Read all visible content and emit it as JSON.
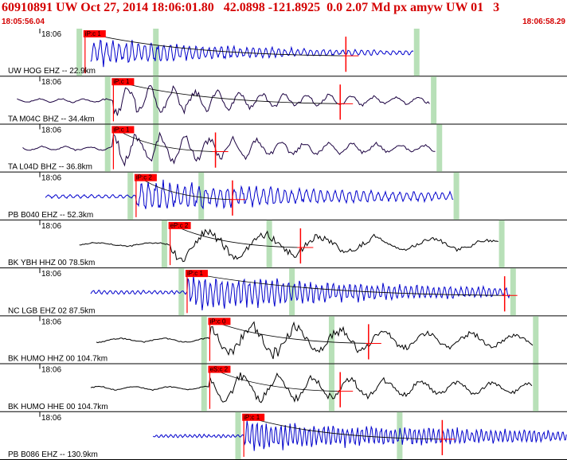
{
  "header": {
    "title": "60910891 UW Oct 27, 2014 18:06:01.80   42.0898 -121.8925  0.0 2.07 Md px amyw UW 01   3",
    "start_time": "18:05:56.04",
    "end_time": "18:06:58.29"
  },
  "colors": {
    "accent": "#d40000",
    "blue_trace": "#0000cc",
    "black_trace": "#000000",
    "purple_trace": "#1a0040",
    "pick_box": "#ff0000",
    "window_band": "#b8e0b8"
  },
  "panels": [
    {
      "time_label": "18:06",
      "station": "UW HOG EHZ -- 22.9km",
      "pick": "iP:c 1",
      "color": "blue",
      "p": 0.15,
      "s": 0.27,
      "end": 0.73,
      "signal": 0.16,
      "amp": 0.55,
      "period": 8,
      "dur": 0.3,
      "coda": 0.61,
      "marker": 0.61
    },
    {
      "time_label": "18:06",
      "station": "TA M04C BHZ -- 34.4km",
      "pick": "iP:c 1",
      "color": "purple",
      "p": 0.2,
      "s": 0.27,
      "end": 0.76,
      "signal": 0.03,
      "amp": 0.65,
      "period": 28,
      "dur": 0.35,
      "coda": 0.6,
      "marker": 0.6
    },
    {
      "time_label": "18:06",
      "station": "TA L04D BHZ -- 36.8km",
      "pick": "iP:c 1",
      "color": "purple",
      "p": 0.2,
      "s": 0.27,
      "end": 0.77,
      "signal": 0.04,
      "amp": 0.7,
      "period": 30,
      "dur": 0.35,
      "coda": 0.38,
      "marker": 0.38
    },
    {
      "time_label": "18:06",
      "station": "PB B040 EHZ -- 52.3km",
      "pick": "iP:c 2",
      "color": "blue",
      "p": 0.24,
      "s": 0.35,
      "end": 0.8,
      "signal": 0.08,
      "amp": 0.6,
      "period": 9,
      "dur": 0.4,
      "coda": 0.41,
      "marker": 0.41
    },
    {
      "time_label": "18:06",
      "station": "BK YBH HHZ 00 78.5km",
      "pick": "eP:c 2",
      "color": "black",
      "p": 0.3,
      "s": 0.47,
      "end": 0.88,
      "signal": 0.14,
      "amp": 0.7,
      "period": 70,
      "dur": 0.45,
      "coda": 0.53,
      "marker": 0.53
    },
    {
      "time_label": "18:06",
      "station": "NC LGB EHZ 02 87.5km",
      "pick": "iP:c 1",
      "color": "blue",
      "p": 0.33,
      "s": 0.51,
      "end": 0.9,
      "signal": 0.16,
      "amp": 0.65,
      "period": 7,
      "dur": 0.45,
      "coda": 0.89,
      "marker": 0.89
    },
    {
      "time_label": "18:06",
      "station": "BK HUMO HHZ 00 104.7km",
      "pick": "iP:c 0",
      "color": "black",
      "p": 0.37,
      "s": 0.58,
      "end": 0.94,
      "signal": 0.17,
      "amp": 0.75,
      "period": 55,
      "dur": 0.5,
      "coda": 0.65,
      "marker": 0.65
    },
    {
      "time_label": "18:06",
      "station": "BK HUMO HHE 00 104.7km",
      "pick": "eS:c 2",
      "color": "black",
      "p": 0.37,
      "s": 0.58,
      "end": 0.94,
      "signal": 0.16,
      "amp": 0.65,
      "period": 45,
      "dur": 0.5,
      "coda": 0.6,
      "marker": 0.6
    },
    {
      "time_label": "18:06",
      "station": "PB B086 EHZ -- 130.9km",
      "pick": "iP:c 1",
      "color": "blue",
      "p": 0.43,
      "s": 0.7,
      "end": 1.0,
      "signal": 0.27,
      "amp": 0.55,
      "period": 6,
      "dur": 0.55,
      "coda": 0.78,
      "marker": 0.78
    }
  ]
}
